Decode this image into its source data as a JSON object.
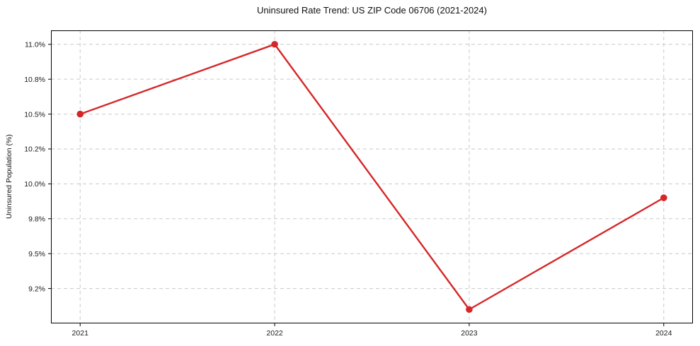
{
  "chart_data": {
    "type": "line",
    "title": "Uninsured Rate Trend: US ZIP Code 06706 (2021-2024)",
    "xlabel": "",
    "ylabel": "Uninsured Population (%)",
    "x": [
      2021,
      2022,
      2023,
      2024
    ],
    "values": [
      10.5,
      11.0,
      9.1,
      9.9
    ],
    "xlim": [
      2020.85,
      2024.15
    ],
    "ylim": [
      9.0,
      11.1
    ],
    "xticks": [
      {
        "value": 2021,
        "label": "2021"
      },
      {
        "value": 2022,
        "label": "2022"
      },
      {
        "value": 2023,
        "label": "2023"
      },
      {
        "value": 2024,
        "label": "2024"
      }
    ],
    "yticks": [
      {
        "value": 9.25,
        "label": "9.2%"
      },
      {
        "value": 9.5,
        "label": "9.5%"
      },
      {
        "value": 9.75,
        "label": "9.8%"
      },
      {
        "value": 10.0,
        "label": "10.0%"
      },
      {
        "value": 10.25,
        "label": "10.2%"
      },
      {
        "value": 10.5,
        "label": "10.5%"
      },
      {
        "value": 10.75,
        "label": "10.8%"
      },
      {
        "value": 11.0,
        "label": "11.0%"
      }
    ],
    "grid": true,
    "grid_style": "dashed",
    "legend": "none",
    "colors": {
      "line": "#d62728",
      "marker": "#d62728",
      "grid": "#c9c9c9",
      "spine": "#000000",
      "tick_text": "#1a1a1a",
      "background": "#ffffff"
    }
  }
}
